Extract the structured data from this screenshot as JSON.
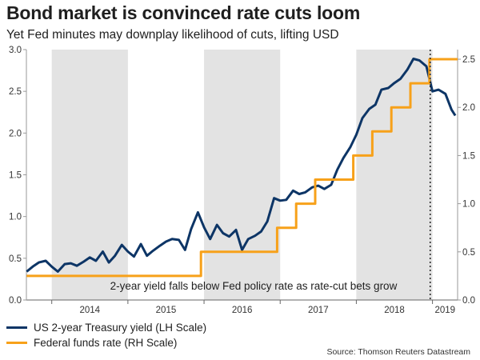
{
  "title": "Bond market is convinced rate cuts loom",
  "subtitle": "Yet Fed minutes may downplay likelihood of cuts, lifting USD",
  "source": "Source: Thomson Reuters Datastream",
  "legend": [
    {
      "label": "US 2-year Treasury yield (LH Scale)",
      "color": "#0d3566"
    },
    {
      "label": "Federal funds rate (RH Scale)",
      "color": "#f7a11a"
    }
  ],
  "chart_data": {
    "type": "line",
    "annotation": "2-year yield falls below Fed policy rate as rate-cut bets grow",
    "x_tick_labels": [
      "2014",
      "2015",
      "2016",
      "2017",
      "2018",
      "2019"
    ],
    "xlim": [
      2013.667,
      2019.33
    ],
    "shaded_years": [
      2014,
      2016,
      2018
    ],
    "vline_x": 2018.97,
    "left_axis": {
      "ylim": [
        0,
        3.0
      ],
      "ticks": [
        "0.0",
        "0.5",
        "1.0",
        "1.5",
        "2.0",
        "2.5",
        "3.0"
      ]
    },
    "right_axis": {
      "ylim": [
        0,
        2.6
      ],
      "ticks": [
        "0.0",
        "0.5",
        "1.0",
        "1.5",
        "2.0",
        "2.5"
      ]
    },
    "grid": false,
    "legend_position": "bottom-left",
    "series": [
      {
        "name": "US 2-year Treasury yield (LH Scale)",
        "axis": "left",
        "color": "#0d3566",
        "x": [
          2013.67,
          2013.75,
          2013.83,
          2013.92,
          2014.0,
          2014.08,
          2014.17,
          2014.25,
          2014.33,
          2014.42,
          2014.5,
          2014.58,
          2014.67,
          2014.75,
          2014.83,
          2014.92,
          2015.0,
          2015.08,
          2015.17,
          2015.25,
          2015.33,
          2015.42,
          2015.5,
          2015.58,
          2015.67,
          2015.75,
          2015.83,
          2015.92,
          2016.0,
          2016.08,
          2016.17,
          2016.25,
          2016.33,
          2016.42,
          2016.5,
          2016.58,
          2016.67,
          2016.75,
          2016.83,
          2016.92,
          2017.0,
          2017.08,
          2017.17,
          2017.25,
          2017.33,
          2017.42,
          2017.5,
          2017.58,
          2017.67,
          2017.75,
          2017.83,
          2017.92,
          2018.0,
          2018.08,
          2018.17,
          2018.25,
          2018.33,
          2018.42,
          2018.5,
          2018.58,
          2018.67,
          2018.75,
          2018.83,
          2018.92,
          2019.0,
          2019.08,
          2019.17,
          2019.25,
          2019.3
        ],
        "y": [
          0.34,
          0.4,
          0.45,
          0.47,
          0.4,
          0.34,
          0.43,
          0.44,
          0.41,
          0.46,
          0.51,
          0.47,
          0.58,
          0.45,
          0.53,
          0.66,
          0.58,
          0.52,
          0.67,
          0.53,
          0.59,
          0.65,
          0.7,
          0.73,
          0.72,
          0.6,
          0.85,
          1.05,
          0.87,
          0.73,
          0.9,
          0.8,
          0.76,
          0.84,
          0.6,
          0.73,
          0.77,
          0.82,
          0.94,
          1.22,
          1.19,
          1.2,
          1.31,
          1.27,
          1.29,
          1.35,
          1.37,
          1.33,
          1.38,
          1.56,
          1.7,
          1.83,
          1.98,
          2.18,
          2.29,
          2.34,
          2.52,
          2.54,
          2.6,
          2.65,
          2.76,
          2.89,
          2.87,
          2.8,
          2.5,
          2.52,
          2.47,
          2.28,
          2.21
        ]
      },
      {
        "name": "Federal funds rate (RH Scale)",
        "axis": "right",
        "color": "#f7a11a",
        "type": "step",
        "x": [
          2013.67,
          2015.96,
          2016.96,
          2017.21,
          2017.46,
          2017.96,
          2018.21,
          2018.46,
          2018.71,
          2018.96,
          2019.33
        ],
        "y": [
          0.25,
          0.5,
          0.75,
          1.0,
          1.25,
          1.5,
          1.75,
          2.0,
          2.25,
          2.5,
          2.5
        ]
      }
    ]
  }
}
